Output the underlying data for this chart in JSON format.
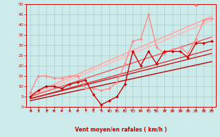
{
  "xlabel": "Vent moyen/en rafales ( km/h )",
  "bg_color": "#cceaea",
  "grid_color": "#aacccc",
  "xlim": [
    -0.5,
    23.5
  ],
  "ylim": [
    0,
    50
  ],
  "yticks": [
    0,
    5,
    10,
    15,
    20,
    25,
    30,
    35,
    40,
    45,
    50
  ],
  "xticks": [
    0,
    1,
    2,
    3,
    4,
    5,
    6,
    7,
    8,
    9,
    10,
    11,
    12,
    13,
    14,
    15,
    16,
    17,
    18,
    19,
    20,
    21,
    22,
    23
  ],
  "series": [
    {
      "x": [
        0,
        1,
        2,
        3,
        4,
        5,
        6,
        7,
        8,
        9,
        10,
        11,
        12,
        13,
        14,
        15,
        16,
        17,
        18,
        19,
        20,
        21,
        22,
        23
      ],
      "y": [
        5,
        8,
        10,
        10,
        9,
        11,
        12,
        13,
        6,
        1,
        3,
        5,
        11,
        27,
        20,
        27,
        21,
        27,
        27,
        27,
        24,
        31,
        31,
        32
      ],
      "color": "#cc0000",
      "lw": 1.0,
      "marker": "D",
      "ms": 2.0,
      "zorder": 5
    },
    {
      "x": [
        0,
        1,
        2,
        3,
        4,
        5,
        6,
        7,
        8,
        9,
        10,
        11,
        12,
        13,
        14,
        15,
        16,
        17,
        18,
        19,
        20,
        21,
        22,
        23
      ],
      "y": [
        7,
        15,
        15,
        14,
        14,
        15,
        15,
        9,
        9,
        8,
        9,
        12,
        21,
        32,
        33,
        45,
        29,
        26,
        28,
        29,
        26,
        33,
        42,
        43
      ],
      "color": "#ff8888",
      "lw": 1.0,
      "marker": "D",
      "ms": 2.0,
      "zorder": 3
    },
    {
      "x": [
        0,
        23
      ],
      "y": [
        6,
        44
      ],
      "color": "#ffaaaa",
      "lw": 1.3,
      "marker": null,
      "ms": 0,
      "zorder": 2
    },
    {
      "x": [
        0,
        23
      ],
      "y": [
        5,
        42
      ],
      "color": "#ffbbbb",
      "lw": 1.3,
      "marker": null,
      "ms": 0,
      "zorder": 2
    },
    {
      "x": [
        0,
        23
      ],
      "y": [
        5,
        34
      ],
      "color": "#ee5555",
      "lw": 1.0,
      "marker": null,
      "ms": 0,
      "zorder": 2
    },
    {
      "x": [
        0,
        23
      ],
      "y": [
        4,
        28
      ],
      "color": "#dd3333",
      "lw": 1.0,
      "marker": null,
      "ms": 0,
      "zorder": 2
    },
    {
      "x": [
        0,
        23
      ],
      "y": [
        4,
        26
      ],
      "color": "#cc1111",
      "lw": 1.0,
      "marker": null,
      "ms": 0,
      "zorder": 2
    },
    {
      "x": [
        0,
        23
      ],
      "y": [
        3,
        22
      ],
      "color": "#bb0000",
      "lw": 1.0,
      "marker": null,
      "ms": 0,
      "zorder": 2
    },
    {
      "x": [
        21
      ],
      "y": [
        50
      ],
      "color": "#ff6666",
      "lw": 0,
      "marker": "^",
      "ms": 3.5,
      "zorder": 6
    }
  ],
  "wind_angles": [
    270,
    260,
    230,
    220,
    215,
    210,
    200,
    190,
    180,
    175,
    90,
    95,
    115,
    130,
    105,
    120,
    135,
    140,
    145,
    148,
    152,
    155,
    158,
    160
  ]
}
